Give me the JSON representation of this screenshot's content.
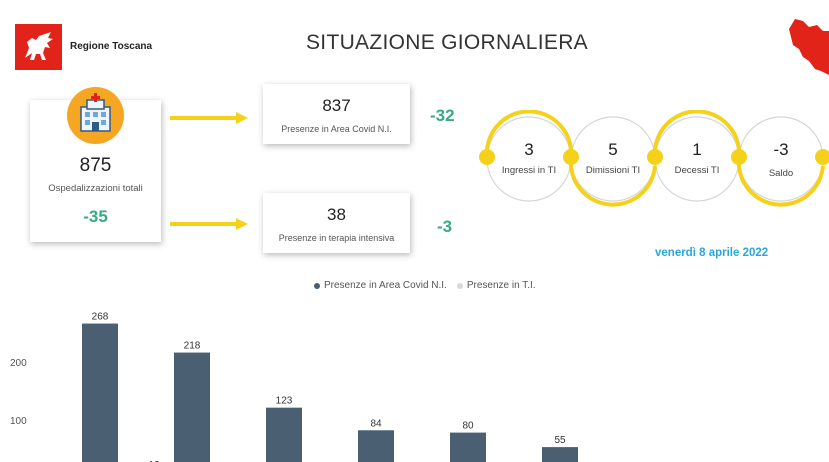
{
  "header": {
    "region_name": "Regione Toscana",
    "title": "SITUAZIONE GIORNALIERA"
  },
  "summary": {
    "total_value": "875",
    "total_label": "Ospedalizzazioni totali",
    "total_delta": "-35",
    "area_value": "837",
    "area_label": "Presenze in Area Covid N.I.",
    "area_delta": "-32",
    "ti_value": "38",
    "ti_label": "Presenze in terapia intensiva",
    "ti_delta": "-3"
  },
  "flow": [
    {
      "value": "3",
      "label": "Ingressi in TI"
    },
    {
      "value": "5",
      "label": "Dimissioni TI"
    },
    {
      "value": "1",
      "label": "Decessi TI"
    },
    {
      "value": "-3",
      "label": "Saldo"
    }
  ],
  "date": "venerdì 8 aprile 2022",
  "colors": {
    "brand_red": "#e2231a",
    "accent_yellow": "#f5d11b",
    "positive_green": "#3aa982",
    "bar_dark": "#4a6072",
    "bar_light": "#d9d9d9",
    "date_blue": "#2aa7d8"
  },
  "chart_data": {
    "type": "bar",
    "series": [
      {
        "name": "Presenze in Area Covid N.I.",
        "color": "#4a6072",
        "values": [
          268,
          218,
          123,
          84,
          80,
          55
        ]
      },
      {
        "name": "Presenze in T.I.",
        "color": "#d9d9d9",
        "values": [
          12,
          10,
          null,
          null,
          null,
          null
        ]
      }
    ],
    "value_labels": [
      "268",
      "218",
      "123",
      "84",
      "80",
      "55"
    ],
    "partial_labels": [
      "12",
      "10"
    ],
    "yticks": [
      100,
      200
    ],
    "ytick_labels": [
      "100",
      "200"
    ],
    "ylim": [
      0,
      300
    ],
    "grid": false,
    "legend": "top-center"
  }
}
